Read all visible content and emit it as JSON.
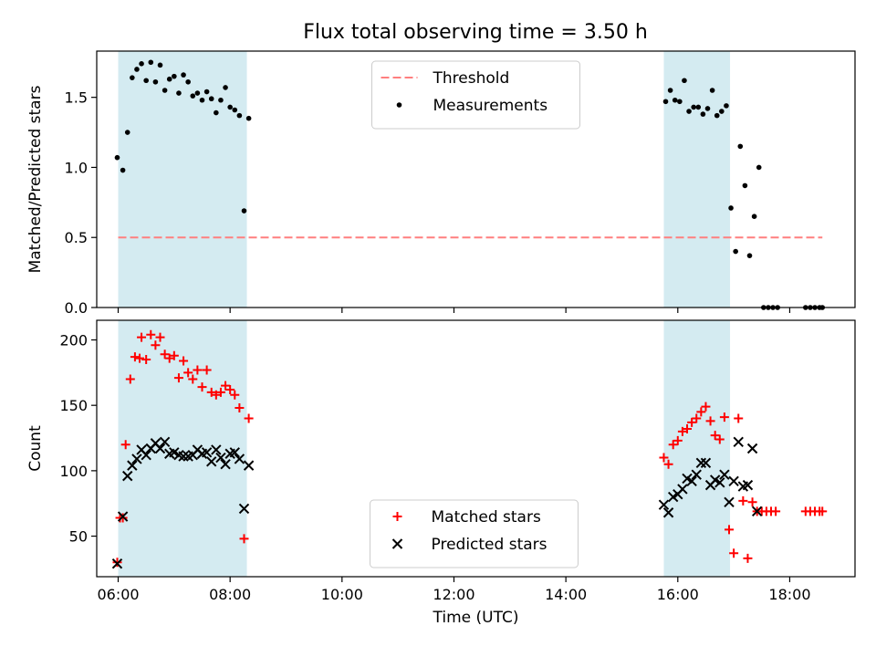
{
  "figure": {
    "title": "Flux total observing time = 3.50 h"
  },
  "chart_data": [
    {
      "type": "scatter",
      "title": "Flux total observing time = 3.50 h",
      "xlabel": "",
      "ylabel": "Matched/Predicted stars",
      "xlim": [
        "05:37",
        "19:10"
      ],
      "ylim": [
        0,
        1.83
      ],
      "xticks": [
        "06:00",
        "08:00",
        "10:00",
        "12:00",
        "14:00",
        "16:00",
        "18:00"
      ],
      "xticks_labeled": false,
      "yticks": [
        "0.0",
        "0.5",
        "1.0",
        "1.5"
      ],
      "shaded_intervals": [
        [
          "06:00",
          "08:18"
        ],
        [
          "15:45",
          "16:56"
        ]
      ],
      "shade_color": "#d4ebf1",
      "legend_position": "upper center",
      "threshold": {
        "name": "Threshold",
        "y": 0.5,
        "x_range": [
          "06:00",
          "18:35"
        ],
        "color": "#ff7f7f",
        "style": "dashed"
      },
      "series": [
        {
          "name": "Measurements",
          "marker": "dot",
          "color": "#000000",
          "points": [
            [
              "05:59",
              1.07
            ],
            [
              "06:05",
              0.98
            ],
            [
              "06:10",
              1.25
            ],
            [
              "06:15",
              1.64
            ],
            [
              "06:20",
              1.7
            ],
            [
              "06:25",
              1.74
            ],
            [
              "06:30",
              1.62
            ],
            [
              "06:35",
              1.75
            ],
            [
              "06:40",
              1.61
            ],
            [
              "06:45",
              1.73
            ],
            [
              "06:50",
              1.55
            ],
            [
              "06:55",
              1.63
            ],
            [
              "07:00",
              1.65
            ],
            [
              "07:05",
              1.53
            ],
            [
              "07:10",
              1.66
            ],
            [
              "07:15",
              1.61
            ],
            [
              "07:20",
              1.51
            ],
            [
              "07:25",
              1.53
            ],
            [
              "07:30",
              1.48
            ],
            [
              "07:35",
              1.54
            ],
            [
              "07:40",
              1.49
            ],
            [
              "07:45",
              1.39
            ],
            [
              "07:50",
              1.48
            ],
            [
              "07:55",
              1.57
            ],
            [
              "08:00",
              1.43
            ],
            [
              "08:05",
              1.41
            ],
            [
              "08:10",
              1.37
            ],
            [
              "08:15",
              0.69
            ],
            [
              "08:20",
              1.35
            ],
            [
              "15:47",
              1.47
            ],
            [
              "15:52",
              1.55
            ],
            [
              "15:57",
              1.48
            ],
            [
              "16:02",
              1.47
            ],
            [
              "16:07",
              1.62
            ],
            [
              "16:12",
              1.4
            ],
            [
              "16:17",
              1.43
            ],
            [
              "16:22",
              1.43
            ],
            [
              "16:27",
              1.38
            ],
            [
              "16:32",
              1.42
            ],
            [
              "16:37",
              1.55
            ],
            [
              "16:42",
              1.37
            ],
            [
              "16:47",
              1.4
            ],
            [
              "16:52",
              1.44
            ],
            [
              "16:57",
              0.71
            ],
            [
              "17:02",
              0.4
            ],
            [
              "17:07",
              1.15
            ],
            [
              "17:12",
              0.87
            ],
            [
              "17:17",
              0.37
            ],
            [
              "17:22",
              0.65
            ],
            [
              "17:27",
              1.0
            ],
            [
              "17:32",
              0.0
            ],
            [
              "17:37",
              0.0
            ],
            [
              "17:42",
              0.0
            ],
            [
              "17:47",
              0.0
            ],
            [
              "18:17",
              0.0
            ],
            [
              "18:22",
              0.0
            ],
            [
              "18:27",
              0.0
            ],
            [
              "18:32",
              0.0
            ],
            [
              "18:35",
              0.0
            ]
          ]
        }
      ]
    },
    {
      "type": "scatter",
      "title": "",
      "xlabel": "Time (UTC)",
      "ylabel": "Count",
      "xlim": [
        "05:37",
        "19:10"
      ],
      "ylim": [
        19,
        215
      ],
      "xticks": [
        "06:00",
        "08:00",
        "10:00",
        "12:00",
        "14:00",
        "16:00",
        "18:00"
      ],
      "yticks": [
        "50",
        "100",
        "150",
        "200"
      ],
      "shaded_intervals": [
        [
          "06:00",
          "08:18"
        ],
        [
          "15:45",
          "16:56"
        ]
      ],
      "shade_color": "#d4ebf1",
      "legend_position": "lower center",
      "series": [
        {
          "name": "Matched stars",
          "marker": "plus",
          "color": "#ff0000",
          "points": [
            [
              "05:59",
              30
            ],
            [
              "06:02",
              64
            ],
            [
              "06:05",
              64
            ],
            [
              "06:08",
              120
            ],
            [
              "06:13",
              170
            ],
            [
              "06:18",
              187
            ],
            [
              "06:23",
              186
            ],
            [
              "06:25",
              202
            ],
            [
              "06:30",
              185
            ],
            [
              "06:35",
              204
            ],
            [
              "06:40",
              196
            ],
            [
              "06:45",
              202
            ],
            [
              "06:50",
              189
            ],
            [
              "06:55",
              186
            ],
            [
              "07:00",
              188
            ],
            [
              "07:05",
              171
            ],
            [
              "07:10",
              184
            ],
            [
              "07:15",
              175
            ],
            [
              "07:20",
              170
            ],
            [
              "07:25",
              177
            ],
            [
              "07:30",
              164
            ],
            [
              "07:35",
              177
            ],
            [
              "07:40",
              160
            ],
            [
              "07:45",
              158
            ],
            [
              "07:50",
              160
            ],
            [
              "07:55",
              165
            ],
            [
              "08:00",
              162
            ],
            [
              "08:05",
              158
            ],
            [
              "08:10",
              148
            ],
            [
              "08:15",
              48
            ],
            [
              "08:20",
              140
            ],
            [
              "15:45",
              110
            ],
            [
              "15:50",
              105
            ],
            [
              "15:55",
              120
            ],
            [
              "16:00",
              123
            ],
            [
              "16:05",
              130
            ],
            [
              "16:10",
              132
            ],
            [
              "16:15",
              137
            ],
            [
              "16:20",
              140
            ],
            [
              "16:25",
              145
            ],
            [
              "16:30",
              149
            ],
            [
              "16:35",
              138
            ],
            [
              "16:40",
              127
            ],
            [
              "16:45",
              124
            ],
            [
              "16:50",
              141
            ],
            [
              "16:55",
              55
            ],
            [
              "17:00",
              37
            ],
            [
              "17:05",
              140
            ],
            [
              "17:10",
              77
            ],
            [
              "17:15",
              33
            ],
            [
              "17:20",
              76
            ],
            [
              "17:25",
              69
            ],
            [
              "17:30",
              69
            ],
            [
              "17:35",
              69
            ],
            [
              "17:40",
              69
            ],
            [
              "17:45",
              69
            ],
            [
              "18:17",
              69
            ],
            [
              "18:22",
              69
            ],
            [
              "18:27",
              69
            ],
            [
              "18:32",
              69
            ],
            [
              "18:35",
              69
            ]
          ]
        },
        {
          "name": "Predicted stars",
          "marker": "x",
          "color": "#000000",
          "points": [
            [
              "05:59",
              29
            ],
            [
              "06:05",
              65
            ],
            [
              "06:10",
              96
            ],
            [
              "06:15",
              104
            ],
            [
              "06:20",
              109
            ],
            [
              "06:25",
              116
            ],
            [
              "06:30",
              112
            ],
            [
              "06:35",
              117
            ],
            [
              "06:40",
              121
            ],
            [
              "06:45",
              117
            ],
            [
              "06:50",
              122
            ],
            [
              "06:55",
              113
            ],
            [
              "07:00",
              114
            ],
            [
              "07:05",
              112
            ],
            [
              "07:10",
              111
            ],
            [
              "07:15",
              111
            ],
            [
              "07:20",
              112
            ],
            [
              "07:25",
              116
            ],
            [
              "07:30",
              113
            ],
            [
              "07:35",
              114
            ],
            [
              "07:40",
              107
            ],
            [
              "07:45",
              116
            ],
            [
              "07:50",
              110
            ],
            [
              "07:55",
              105
            ],
            [
              "08:00",
              113
            ],
            [
              "08:05",
              114
            ],
            [
              "08:10",
              109
            ],
            [
              "08:15",
              71
            ],
            [
              "08:20",
              104
            ],
            [
              "15:45",
              74
            ],
            [
              "15:50",
              68
            ],
            [
              "15:55",
              80
            ],
            [
              "16:00",
              82
            ],
            [
              "16:05",
              86
            ],
            [
              "16:10",
              94
            ],
            [
              "16:15",
              92
            ],
            [
              "16:20",
              97
            ],
            [
              "16:25",
              106
            ],
            [
              "16:30",
              106
            ],
            [
              "16:35",
              89
            ],
            [
              "16:40",
              93
            ],
            [
              "16:45",
              91
            ],
            [
              "16:50",
              97
            ],
            [
              "16:55",
              76
            ],
            [
              "17:00",
              92
            ],
            [
              "17:05",
              122
            ],
            [
              "17:10",
              88
            ],
            [
              "17:15",
              89
            ],
            [
              "17:20",
              117
            ],
            [
              "17:25",
              69
            ]
          ]
        }
      ]
    }
  ]
}
